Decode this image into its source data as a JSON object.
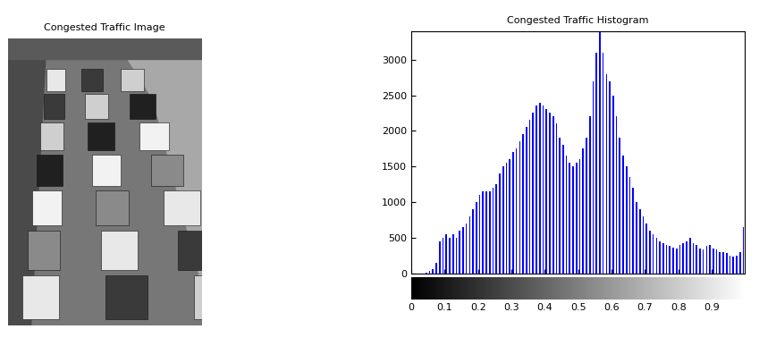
{
  "chart_data": [
    {
      "type": "image",
      "title": "Congested Traffic Image",
      "tick_labels": false
    },
    {
      "type": "histogram",
      "title": "Congested Traffic Histogram",
      "color": "#0000ff",
      "bins": [
        0,
        0.01,
        0.02,
        0.03,
        0.04,
        0.05,
        0.06,
        0.07,
        0.08,
        0.09,
        0.1,
        0.11,
        0.12,
        0.13,
        0.14,
        0.15,
        0.16,
        0.17,
        0.18,
        0.19,
        0.2,
        0.21,
        0.22,
        0.23,
        0.24,
        0.25,
        0.26,
        0.27,
        0.28,
        0.29,
        0.3,
        0.31,
        0.32,
        0.33,
        0.34,
        0.35,
        0.36,
        0.37,
        0.38,
        0.39,
        0.4,
        0.41,
        0.42,
        0.43,
        0.44,
        0.45,
        0.46,
        0.47,
        0.48,
        0.49,
        0.5,
        0.51,
        0.52,
        0.53,
        0.54,
        0.55,
        0.56,
        0.57,
        0.58,
        0.59,
        0.6,
        0.61,
        0.62,
        0.63,
        0.64,
        0.65,
        0.66,
        0.67,
        0.68,
        0.69,
        0.7,
        0.71,
        0.72,
        0.73,
        0.74,
        0.75,
        0.76,
        0.77,
        0.78,
        0.79,
        0.8,
        0.81,
        0.82,
        0.83,
        0.84,
        0.85,
        0.86,
        0.87,
        0.88,
        0.89,
        0.9,
        0.91,
        0.92,
        0.93,
        0.94,
        0.95,
        0.96,
        0.97,
        0.98,
        0.99,
        1.0
      ],
      "values": [
        0,
        0,
        0,
        0,
        5,
        30,
        60,
        150,
        450,
        500,
        550,
        500,
        550,
        500,
        600,
        650,
        700,
        800,
        900,
        1000,
        1100,
        1150,
        1150,
        1150,
        1200,
        1250,
        1400,
        1500,
        1550,
        1600,
        1700,
        1750,
        1850,
        1950,
        2050,
        2150,
        2250,
        2350,
        2400,
        2350,
        2300,
        2250,
        2200,
        2100,
        1900,
        1800,
        1650,
        1550,
        1500,
        1550,
        1600,
        1750,
        1900,
        2200,
        2700,
        3100,
        3400,
        3100,
        2800,
        2700,
        2500,
        2200,
        1900,
        1650,
        1500,
        1350,
        1200,
        1000,
        900,
        800,
        700,
        600,
        550,
        500,
        450,
        420,
        400,
        380,
        360,
        350,
        400,
        420,
        450,
        500,
        420,
        400,
        350,
        330,
        380,
        400,
        350,
        330,
        300,
        300,
        280,
        250,
        230,
        250,
        300,
        650
      ],
      "xlim": [
        0,
        1
      ],
      "ylim": [
        0,
        3400
      ],
      "xticks": [
        0,
        0.1,
        0.2,
        0.3,
        0.4,
        0.5,
        0.6,
        0.7,
        0.8,
        0.9
      ],
      "yticks": [
        0,
        500,
        1000,
        1500,
        2000,
        2500,
        3000
      ]
    }
  ]
}
